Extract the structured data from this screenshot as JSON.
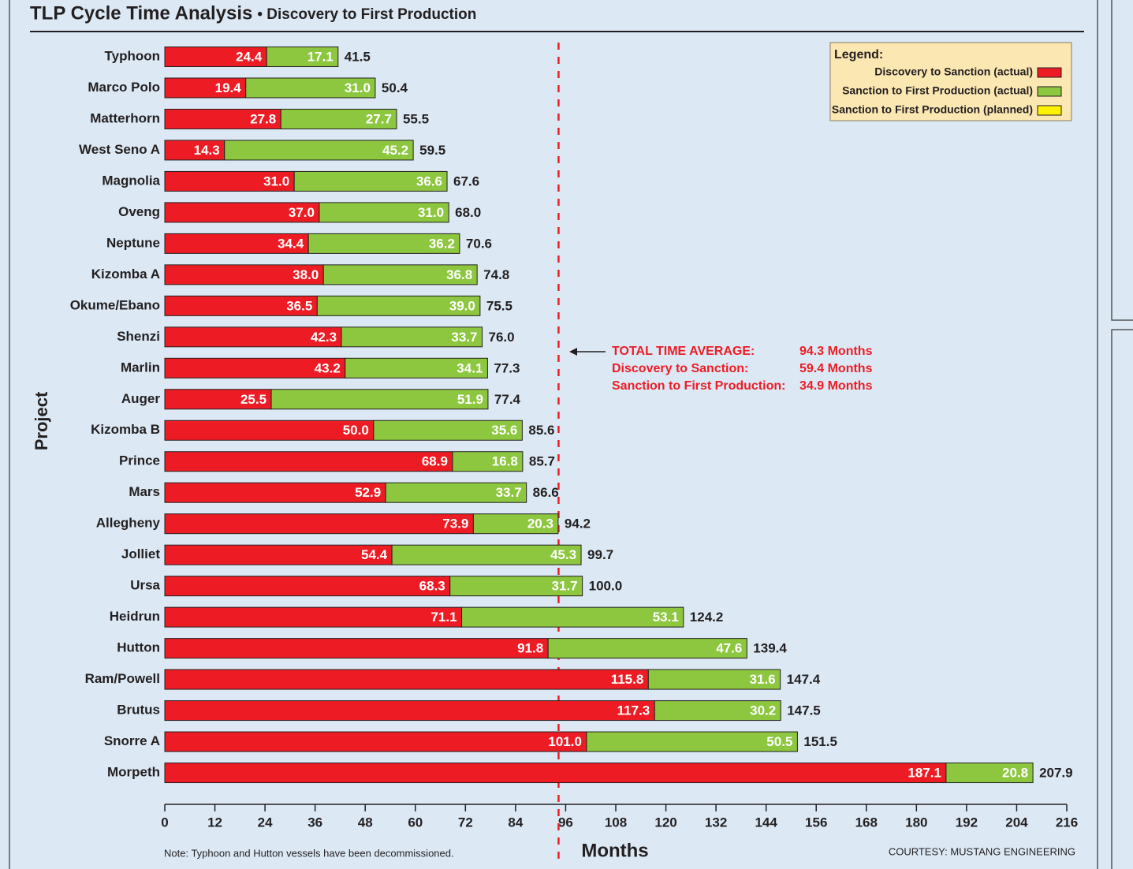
{
  "chart_data": {
    "type": "stacked_bar_horizontal",
    "title": "TLP Cycle Time Analysis",
    "subtitle": "• Discovery to First Production",
    "y_label": "Project",
    "x_label": "Months",
    "categories": [
      "Typhoon",
      "Marco Polo",
      "Matterhorn",
      "West Seno A",
      "Magnolia",
      "Oveng",
      "Neptune",
      "Kizomba A",
      "Okume/Ebano",
      "Shenzi",
      "Marlin",
      "Auger",
      "Kizomba B",
      "Prince",
      "Mars",
      "Allegheny",
      "Jolliet",
      "Ursa",
      "Heidrun",
      "Hutton",
      "Ram/Powell",
      "Brutus",
      "Snorre A",
      "Morpeth"
    ],
    "series": [
      {
        "name": "Discovery to Sanction (actual)",
        "color": "#ed1c24",
        "values": [
          24.4,
          19.4,
          27.8,
          14.3,
          31.0,
          37.0,
          34.4,
          38.0,
          36.5,
          42.3,
          43.2,
          25.5,
          50.0,
          68.9,
          52.9,
          73.9,
          54.4,
          68.3,
          71.1,
          91.8,
          115.8,
          117.3,
          101.0,
          187.1
        ],
        "value_labels": [
          "24.4",
          "19.4",
          "27.8",
          "14.3",
          "31.0",
          "37.0",
          "34.4",
          "38.0",
          "36.5",
          "42.3",
          "43.2",
          "25.5",
          "50.0",
          "68.9",
          "52.9",
          "73.9",
          "54.4",
          "68.3",
          "71.1",
          "91.8",
          "115.8",
          "117.3",
          "101.0",
          "187.1"
        ]
      },
      {
        "name": "Sanction to First Production (actual)",
        "color": "#8dc63f",
        "values": [
          17.1,
          31.0,
          27.7,
          45.2,
          36.6,
          31.0,
          36.2,
          36.8,
          39.0,
          33.7,
          34.1,
          51.9,
          35.6,
          16.8,
          33.7,
          20.3,
          45.3,
          31.7,
          53.1,
          47.6,
          31.6,
          30.2,
          50.5,
          20.8
        ],
        "value_labels": [
          "17.1",
          "31.0",
          "27.7",
          "45.2",
          "36.6",
          "31.0",
          "36.2",
          "36.8",
          "39.0",
          "33.7",
          "34.1",
          "51.9",
          "35.6",
          "16.8",
          "33.7",
          "20.3",
          "45.3",
          "31.7",
          "53.1",
          "47.6",
          "31.6",
          "30.2",
          "50.5",
          "20.8"
        ]
      },
      {
        "name": "Sanction to First Production (planned)",
        "color": "#fff200",
        "values": [
          null,
          null,
          null,
          null,
          null,
          null,
          null,
          null,
          null,
          null,
          null,
          null,
          null,
          null,
          null,
          null,
          null,
          null,
          null,
          null,
          null,
          null,
          null,
          null
        ]
      }
    ],
    "total_labels": [
      "41.5",
      "50.4",
      "55.5",
      "59.5",
      "67.6",
      "68.0",
      "70.6",
      "74.8",
      "75.5",
      "76.0",
      "77.3",
      "77.4",
      "85.6",
      "85.7",
      "86.6",
      "94.2",
      "99.7",
      "100.0",
      "124.2",
      "139.4",
      "147.4",
      "147.5",
      "151.5",
      "207.9"
    ],
    "xlim": [
      0,
      216
    ],
    "xticks": [
      0,
      12,
      24,
      36,
      48,
      60,
      72,
      84,
      96,
      108,
      120,
      132,
      144,
      156,
      168,
      180,
      192,
      204,
      216
    ],
    "legend_title": "Legend:",
    "legend_position": "top-right",
    "average_line": 94.3,
    "annotation": [
      {
        "label": "TOTAL TIME AVERAGE:",
        "value": "94.3 Months"
      },
      {
        "label": "Discovery to Sanction:",
        "value": "59.4 Months"
      },
      {
        "label": "Sanction to First Production:",
        "value": "34.9 Months"
      }
    ],
    "note": "Note: Typhoon and Hutton vessels have been decommissioned.",
    "credit": "COURTESY: MUSTANG ENGINEERING"
  }
}
